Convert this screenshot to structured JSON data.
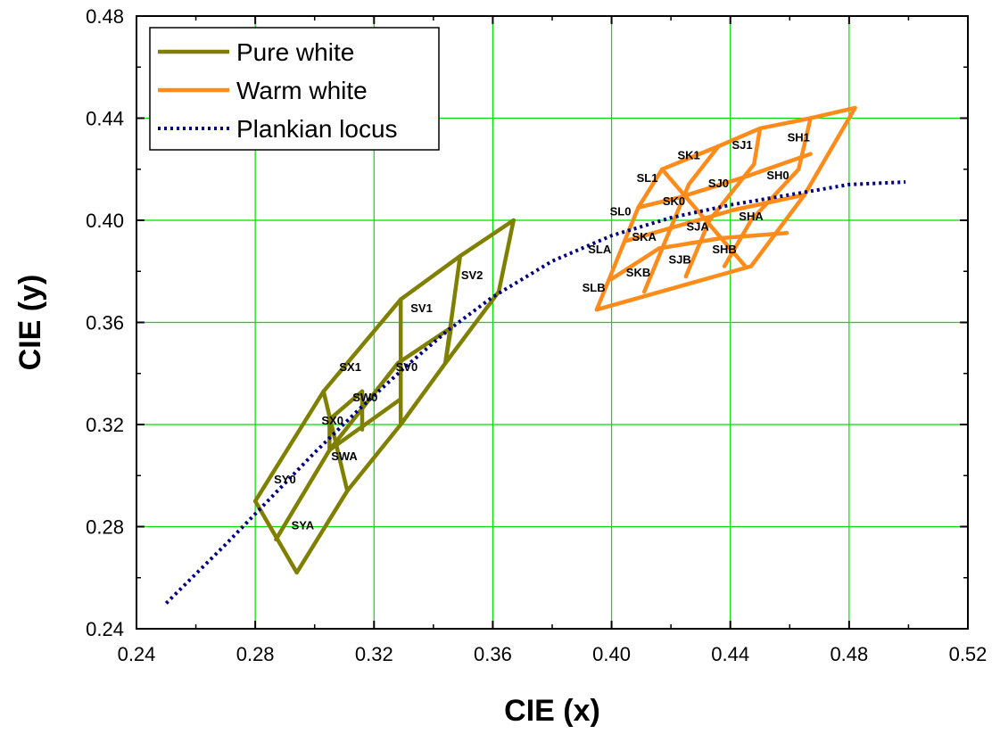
{
  "chart_data": {
    "type": "line",
    "title": "",
    "xlabel": "CIE (x)",
    "ylabel": "CIE (y)",
    "xlim": [
      0.24,
      0.52
    ],
    "ylim": [
      0.24,
      0.48
    ],
    "xticks": [
      0.24,
      0.28,
      0.32,
      0.36,
      0.4,
      0.44,
      0.48,
      0.52
    ],
    "yticks": [
      0.24,
      0.28,
      0.32,
      0.36,
      0.4,
      0.44,
      0.48
    ],
    "grid": true,
    "grid_color": "#00dd00",
    "legend_position": "top-left",
    "series": [
      {
        "name": "Pure white",
        "color": "#808000",
        "style": "solid",
        "segments": [
          [
            [
              0.28,
              0.29
            ],
            [
              0.294,
              0.262
            ],
            [
              0.311,
              0.294
            ],
            [
              0.329,
              0.32
            ],
            [
              0.344,
              0.344
            ],
            [
              0.362,
              0.372
            ],
            [
              0.367,
              0.4
            ]
          ],
          [
            [
              0.28,
              0.29
            ],
            [
              0.303,
              0.333
            ],
            [
              0.329,
              0.369
            ],
            [
              0.349,
              0.386
            ],
            [
              0.367,
              0.4
            ]
          ],
          [
            [
              0.287,
              0.275
            ],
            [
              0.305,
              0.31
            ],
            [
              0.329,
              0.33
            ]
          ],
          [
            [
              0.305,
              0.31
            ],
            [
              0.328,
              0.344
            ],
            [
              0.346,
              0.358
            ]
          ],
          [
            [
              0.305,
              0.322
            ],
            [
              0.316,
              0.333
            ]
          ],
          [
            [
              0.303,
              0.333
            ],
            [
              0.311,
              0.294
            ]
          ],
          [
            [
              0.305,
              0.322
            ],
            [
              0.305,
              0.31
            ]
          ],
          [
            [
              0.316,
              0.333
            ],
            [
              0.316,
              0.318
            ]
          ],
          [
            [
              0.329,
              0.369
            ],
            [
              0.329,
              0.32
            ]
          ],
          [
            [
              0.346,
              0.358
            ],
            [
              0.344,
              0.344
            ]
          ],
          [
            [
              0.349,
              0.386
            ],
            [
              0.344,
              0.344
            ]
          ]
        ]
      },
      {
        "name": "Warm white",
        "color": "#ff8c1a",
        "style": "solid",
        "segments": [
          [
            [
              0.395,
              0.365
            ],
            [
              0.447,
              0.382
            ],
            [
              0.465,
              0.41
            ],
            [
              0.482,
              0.444
            ]
          ],
          [
            [
              0.395,
              0.365
            ],
            [
              0.409,
              0.405
            ],
            [
              0.417,
              0.42
            ],
            [
              0.436,
              0.429
            ],
            [
              0.45,
              0.436
            ],
            [
              0.467,
              0.44
            ],
            [
              0.482,
              0.444
            ]
          ],
          [
            [
              0.4,
              0.377
            ],
            [
              0.416,
              0.389
            ],
            [
              0.437,
              0.393
            ],
            [
              0.459,
              0.395
            ]
          ],
          [
            [
              0.405,
              0.392
            ],
            [
              0.42,
              0.397
            ],
            [
              0.441,
              0.404
            ],
            [
              0.465,
              0.41
            ]
          ],
          [
            [
              0.409,
              0.405
            ],
            [
              0.423,
              0.409
            ],
            [
              0.445,
              0.417
            ],
            [
              0.467,
              0.426
            ]
          ],
          [
            [
              0.417,
              0.42
            ],
            [
              0.445,
              0.382
            ]
          ],
          [
            [
              0.436,
              0.429
            ],
            [
              0.426,
              0.414
            ],
            [
              0.411,
              0.372
            ]
          ],
          [
            [
              0.45,
              0.436
            ],
            [
              0.448,
              0.422
            ],
            [
              0.433,
              0.4
            ],
            [
              0.425,
              0.378
            ]
          ],
          [
            [
              0.467,
              0.44
            ],
            [
              0.463,
              0.42
            ],
            [
              0.447,
              0.4
            ],
            [
              0.438,
              0.382
            ]
          ]
        ]
      },
      {
        "name": "Plankian locus",
        "color": "#000080",
        "style": "dotted",
        "x": [
          0.25,
          0.27,
          0.285,
          0.3,
          0.315,
          0.33,
          0.345,
          0.36,
          0.38,
          0.4,
          0.42,
          0.44,
          0.46,
          0.48,
          0.499
        ],
        "y": [
          0.25,
          0.273,
          0.291,
          0.309,
          0.326,
          0.342,
          0.357,
          0.37,
          0.384,
          0.394,
          0.401,
          0.406,
          0.41,
          0.414,
          0.415
        ]
      }
    ],
    "annotations": [
      {
        "text": "SV2",
        "x": 0.353,
        "y": 0.377
      },
      {
        "text": "SV1",
        "x": 0.336,
        "y": 0.364
      },
      {
        "text": "SV0",
        "x": 0.331,
        "y": 0.341
      },
      {
        "text": "SX1",
        "x": 0.312,
        "y": 0.341
      },
      {
        "text": "SW0",
        "x": 0.317,
        "y": 0.329
      },
      {
        "text": "SX0",
        "x": 0.306,
        "y": 0.32
      },
      {
        "text": "SWA",
        "x": 0.31,
        "y": 0.306
      },
      {
        "text": "SY0",
        "x": 0.29,
        "y": 0.297
      },
      {
        "text": "SYA",
        "x": 0.296,
        "y": 0.279
      },
      {
        "text": "SH1",
        "x": 0.463,
        "y": 0.431
      },
      {
        "text": "SJ1",
        "x": 0.444,
        "y": 0.428
      },
      {
        "text": "SK1",
        "x": 0.426,
        "y": 0.424
      },
      {
        "text": "SH0",
        "x": 0.456,
        "y": 0.416
      },
      {
        "text": "SJ0",
        "x": 0.436,
        "y": 0.413
      },
      {
        "text": "SL1",
        "x": 0.412,
        "y": 0.415
      },
      {
        "text": "SK0",
        "x": 0.421,
        "y": 0.406
      },
      {
        "text": "SL0",
        "x": 0.403,
        "y": 0.402
      },
      {
        "text": "SHA",
        "x": 0.447,
        "y": 0.4
      },
      {
        "text": "SJA",
        "x": 0.429,
        "y": 0.396
      },
      {
        "text": "SKA",
        "x": 0.411,
        "y": 0.392
      },
      {
        "text": "SLA",
        "x": 0.396,
        "y": 0.387
      },
      {
        "text": "SHB",
        "x": 0.438,
        "y": 0.387
      },
      {
        "text": "SJB",
        "x": 0.423,
        "y": 0.383
      },
      {
        "text": "SKB",
        "x": 0.409,
        "y": 0.378
      },
      {
        "text": "SLB",
        "x": 0.394,
        "y": 0.372
      }
    ]
  }
}
